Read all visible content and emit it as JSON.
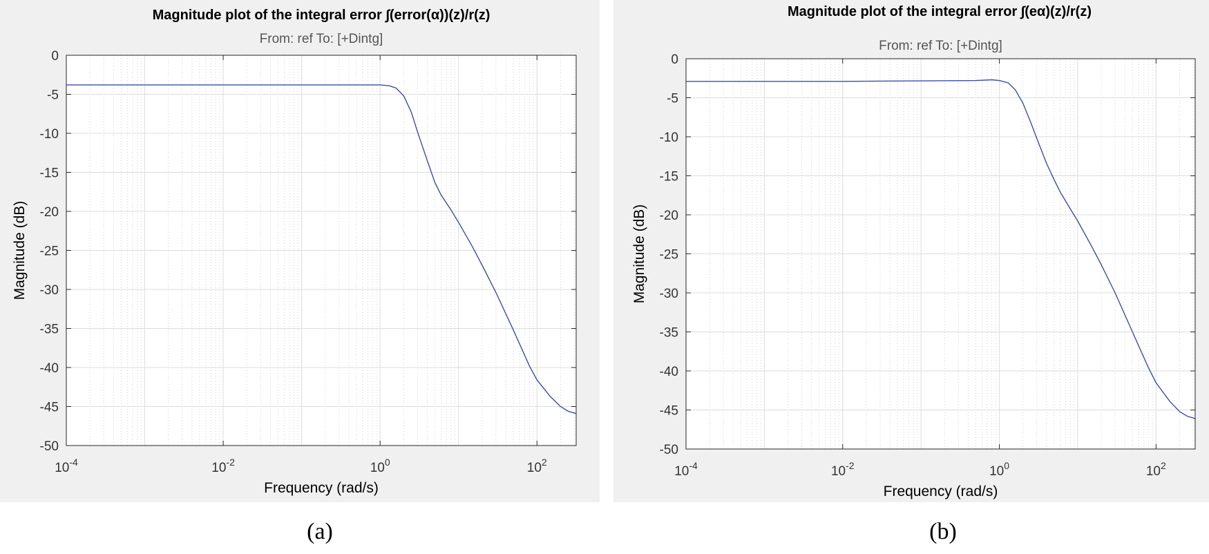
{
  "chart_data": [
    {
      "type": "line",
      "title": "Magnitude plot of the integral error ∫(error(α))(z)/r(z)",
      "subtitle": "From: ref  To: [+Dintg]",
      "xlabel": "Frequency  (rad/s)",
      "ylabel": "Magnitude (dB)",
      "xscale": "log",
      "xlim": [
        0.0001,
        316
      ],
      "ylim": [
        -50,
        0
      ],
      "xticks": [
        "10-4",
        "10-2",
        "100",
        "102"
      ],
      "yticks": [
        0,
        -5,
        -10,
        -15,
        -20,
        -25,
        -30,
        -35,
        -40,
        -45,
        -50
      ],
      "grid": true,
      "caption": "(a)",
      "series": [
        {
          "color": "#3b4bb0",
          "x": [
            0.0001,
            0.01,
            1,
            1.3,
            1.6,
            2,
            2.5,
            3,
            4,
            5,
            6,
            8,
            10,
            15,
            20,
            30,
            50,
            80,
            100,
            150,
            200,
            250,
            316
          ],
          "y": [
            -3.8,
            -3.8,
            -3.8,
            -3.9,
            -4.2,
            -5.2,
            -7.3,
            -9.8,
            -13.5,
            -16.3,
            -17.9,
            -19.8,
            -21.4,
            -24.5,
            -26.9,
            -30.4,
            -35.2,
            -39.8,
            -41.6,
            -43.8,
            -45.0,
            -45.6,
            -45.9
          ]
        }
      ]
    },
    {
      "type": "line",
      "title": "Magnitude plot of the integral error ∫(eα)(z)/r(z)",
      "subtitle": "From: ref  To: [+Dintg]",
      "xlabel": "Frequency  (rad/s)",
      "ylabel": "Magnitude (dB)",
      "xscale": "log",
      "xlim": [
        0.0001,
        316
      ],
      "ylim": [
        -50,
        0
      ],
      "xticks": [
        "10-4",
        "10-2",
        "100",
        "102"
      ],
      "yticks": [
        0,
        -5,
        -10,
        -15,
        -20,
        -25,
        -30,
        -35,
        -40,
        -45,
        -50
      ],
      "grid": true,
      "caption": "(b)",
      "series": [
        {
          "color": "#3b4bb0",
          "x": [
            0.0001,
            0.01,
            0.5,
            0.8,
            1,
            1.3,
            1.6,
            2,
            2.5,
            3,
            4,
            5,
            6,
            8,
            10,
            15,
            20,
            30,
            50,
            80,
            100,
            150,
            200,
            250,
            316
          ],
          "y": [
            -2.9,
            -2.9,
            -2.8,
            -2.7,
            -2.8,
            -3.1,
            -4.0,
            -5.7,
            -8.1,
            -10.2,
            -13.4,
            -15.5,
            -17.1,
            -19.2,
            -20.8,
            -24.0,
            -26.4,
            -30.0,
            -35.0,
            -39.6,
            -41.5,
            -43.9,
            -45.2,
            -45.8,
            -46.1
          ]
        }
      ]
    }
  ]
}
